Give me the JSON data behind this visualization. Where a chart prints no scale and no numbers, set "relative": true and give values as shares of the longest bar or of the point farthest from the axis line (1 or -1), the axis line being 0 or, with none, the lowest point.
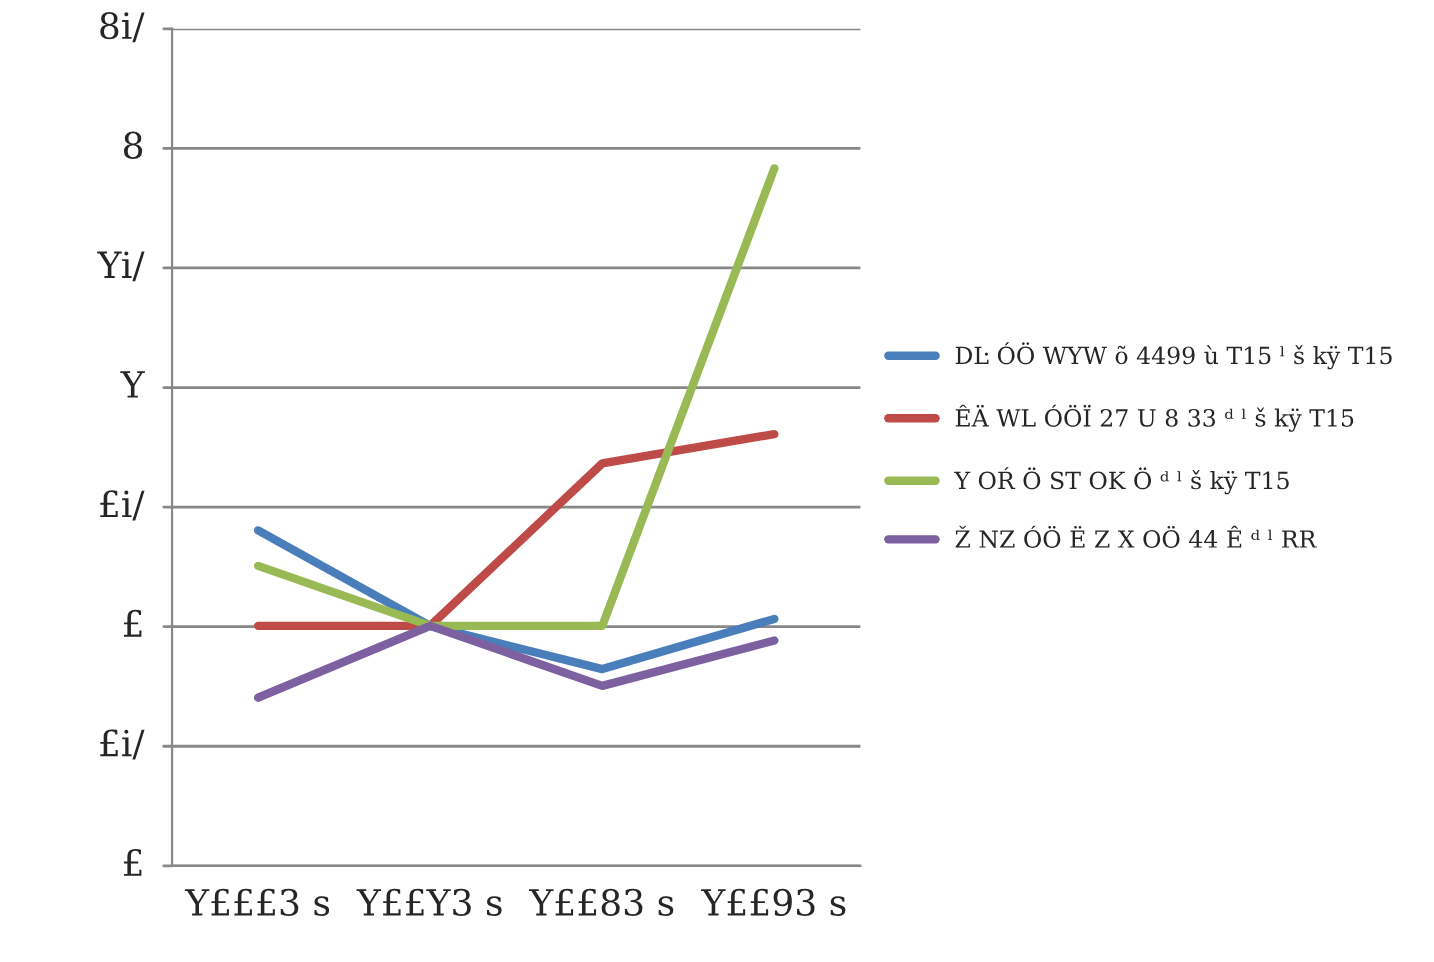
{
  "chart_data": {
    "type": "line",
    "relative": true,
    "categories": [
      "Y£££3 s",
      "Y££Y3 s",
      "Y££83 s",
      "Y££93 s"
    ],
    "series": [
      {
        "name": "DĿ ÓÖ WYW õ 4499 ù T15 ˡ š kÿ T15",
        "color": "#4a7ebb",
        "values": [
          0.481,
          0.344,
          0.282,
          0.354
        ]
      },
      {
        "name": "ÊÄ WL ÓÖÏ 27 U 8 33 ᵈ ˡ š kÿ T15",
        "color": "#be4b48",
        "values": [
          0.344,
          0.344,
          0.577,
          0.619
        ]
      },
      {
        "name": "Y OŔ Ö ST OK Ö ᵈ ˡ š kÿ T15",
        "color": "#98b954",
        "values": [
          0.43,
          0.344,
          0.344,
          1
        ]
      },
      {
        "name": "Ž NZ ÓÖ Ë Z X OÖ 44 Ê ᵈ ˡ RR",
        "color": "#7d60a0",
        "values": [
          0.241,
          0.344,
          0.258,
          0.323
        ]
      }
    ],
    "annotations": [
      "£",
      "£i/",
      "£",
      "£i/",
      "Y",
      "Yi/",
      "8",
      "8i/"
    ],
    "grid": "y",
    "legend": "right",
    "marker": "none",
    "line_style": "solid"
  }
}
